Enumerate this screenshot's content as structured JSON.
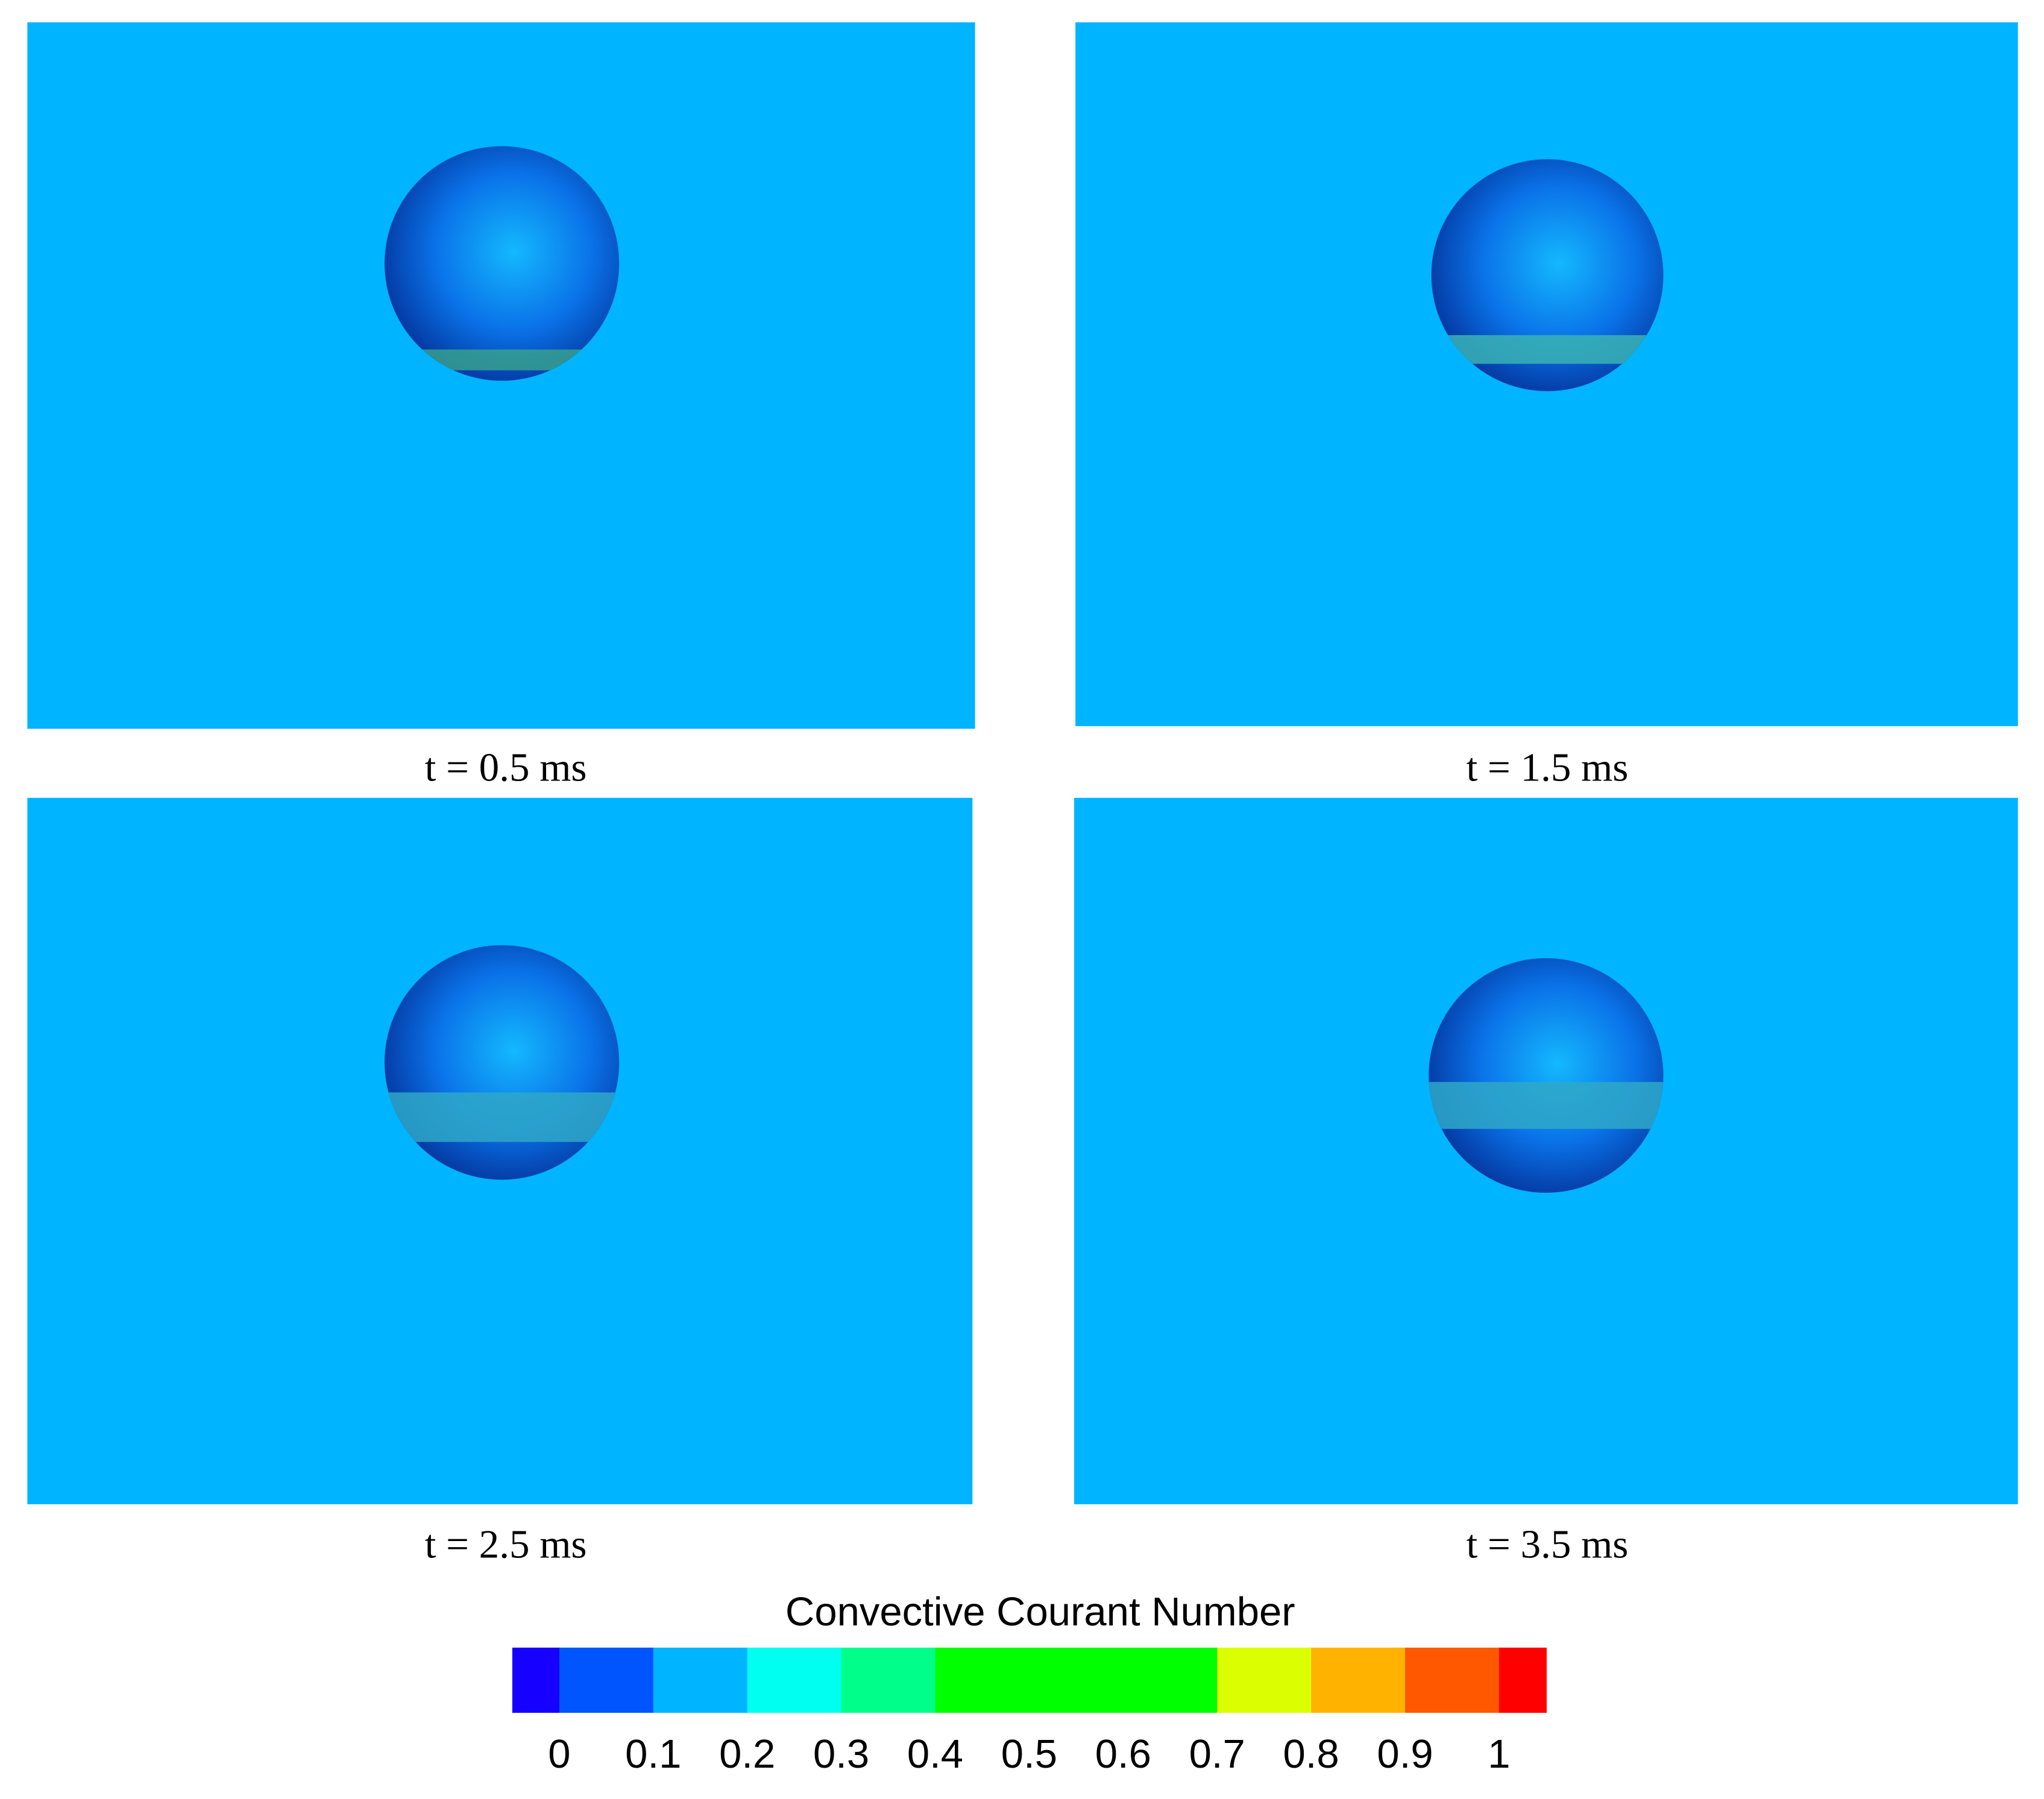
{
  "panels": [
    {
      "caption": "t = 0.5 ms"
    },
    {
      "caption": "t = 1.5 ms"
    },
    {
      "caption": "t = 2.5 ms"
    },
    {
      "caption": "t = 3.5 ms"
    }
  ],
  "colorbar": {
    "title": "Convective Courant Number",
    "range": [
      -0.05,
      1.05
    ],
    "ticks": [
      0,
      0.1,
      0.2,
      0.3,
      0.4,
      0.5,
      0.6,
      0.7,
      0.8,
      0.9,
      1
    ],
    "segments": [
      {
        "from": -0.05,
        "to": 0,
        "color": "#1600ff"
      },
      {
        "from": 0,
        "to": 0.1,
        "color": "#0055ff"
      },
      {
        "from": 0.1,
        "to": 0.2,
        "color": "#00b4ff"
      },
      {
        "from": 0.2,
        "to": 0.3,
        "color": "#00fff0"
      },
      {
        "from": 0.3,
        "to": 0.4,
        "color": "#00ff8a"
      },
      {
        "from": 0.4,
        "to": 0.7,
        "color": "#00ff00"
      },
      {
        "from": 0.7,
        "to": 0.8,
        "color": "#dcff00"
      },
      {
        "from": 0.8,
        "to": 0.9,
        "color": "#ffb300"
      },
      {
        "from": 0.9,
        "to": 1,
        "color": "#ff5800"
      },
      {
        "from": 1,
        "to": 1.05,
        "color": "#ff0000"
      }
    ]
  }
}
